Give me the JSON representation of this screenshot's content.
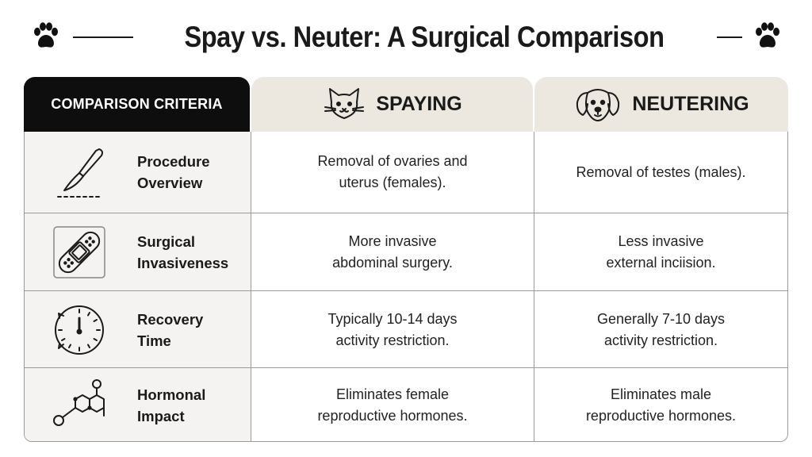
{
  "title": "Spay vs. Neuter: A Surgical Comparison",
  "header": {
    "criteria_label": "COMPARISON CRITERIA",
    "spay_label": "SPAYING",
    "neuter_label": "NEUTERING",
    "spay_icon": "cat-face-icon",
    "neuter_icon": "dog-face-icon"
  },
  "decorations": {
    "paw_icon": "paw-print-icon"
  },
  "rows": [
    {
      "icon": "scalpel-icon",
      "criterion": "Procedure\nOverview",
      "spay": "Removal of ovaries and\nuterus (females).",
      "neuter": "Removal of testes (males)."
    },
    {
      "icon": "bandage-icon",
      "criterion": "Surgical\nInvasiveness",
      "spay": "More invasive\nabdominal surgery.",
      "neuter": "Less invasive\nexternal inciision."
    },
    {
      "icon": "clock-icon",
      "criterion": "Recovery\nTime",
      "spay": "Typically 10-14 days\nactivity restriction.",
      "neuter": "Generally 7-10 days\nactivity restriction."
    },
    {
      "icon": "molecule-icon",
      "criterion": "Hormonal\nImpact",
      "spay": "Eliminates female\nreproductive hormones.",
      "neuter": "Eliminates male\nreproductive hormones."
    }
  ]
}
